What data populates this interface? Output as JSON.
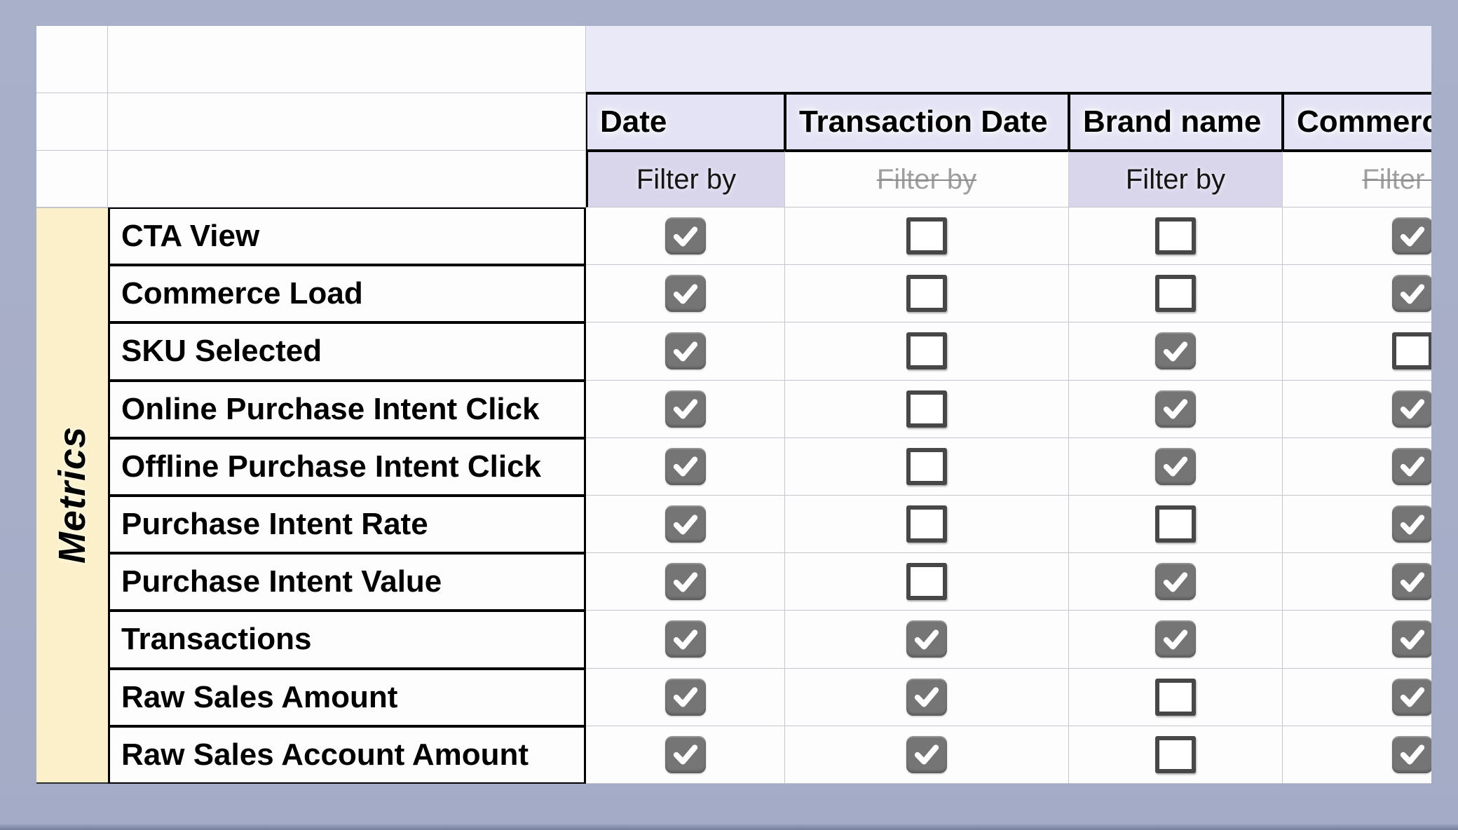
{
  "table": {
    "row_axis_label": "Metrics",
    "columns": [
      {
        "label": "Date",
        "filter": {
          "label": "Filter by",
          "enabled": true
        }
      },
      {
        "label": "Transaction Date",
        "filter": {
          "label": "Filter by",
          "enabled": false
        }
      },
      {
        "label": "Brand name",
        "filter": {
          "label": "Filter by",
          "enabled": true
        }
      },
      {
        "label": "Commerce",
        "filter": {
          "label": "Filter by",
          "enabled": false
        },
        "clipped_at_right_edge": true
      }
    ],
    "rows": [
      {
        "label": "CTA View",
        "checks": [
          true,
          false,
          false,
          true
        ]
      },
      {
        "label": "Commerce Load",
        "checks": [
          true,
          false,
          false,
          true
        ]
      },
      {
        "label": "SKU Selected",
        "checks": [
          true,
          false,
          true,
          false
        ]
      },
      {
        "label": "Online Purchase Intent Click",
        "checks": [
          true,
          false,
          true,
          true
        ]
      },
      {
        "label": "Offline Purchase Intent Click",
        "checks": [
          true,
          false,
          true,
          true
        ]
      },
      {
        "label": "Purchase Intent Rate",
        "checks": [
          true,
          false,
          false,
          true
        ]
      },
      {
        "label": "Purchase Intent Value",
        "checks": [
          true,
          false,
          true,
          true
        ]
      },
      {
        "label": "Transactions",
        "checks": [
          true,
          true,
          true,
          true
        ]
      },
      {
        "label": "Raw Sales Amount",
        "checks": [
          true,
          true,
          false,
          true
        ]
      },
      {
        "label": "Raw Sales Account Amount",
        "checks": [
          true,
          true,
          false,
          true
        ]
      }
    ]
  },
  "colors": {
    "frame": "#a9b0c9",
    "frame_bottom_strip": "#75809d",
    "header_band_bg": "#e9e9f8",
    "header_cell_bg": "#e3e3f5",
    "filter_active_bg": "#d9d6ec",
    "filter_disabled_text": "#9f9f9f",
    "metrics_axis_bg": "#fbf0c9",
    "checkbox_checked_fill": "#757575",
    "checkbox_unchecked_border": "#474747",
    "grid_line": "#c6c6cf",
    "table_border": "#000000"
  }
}
